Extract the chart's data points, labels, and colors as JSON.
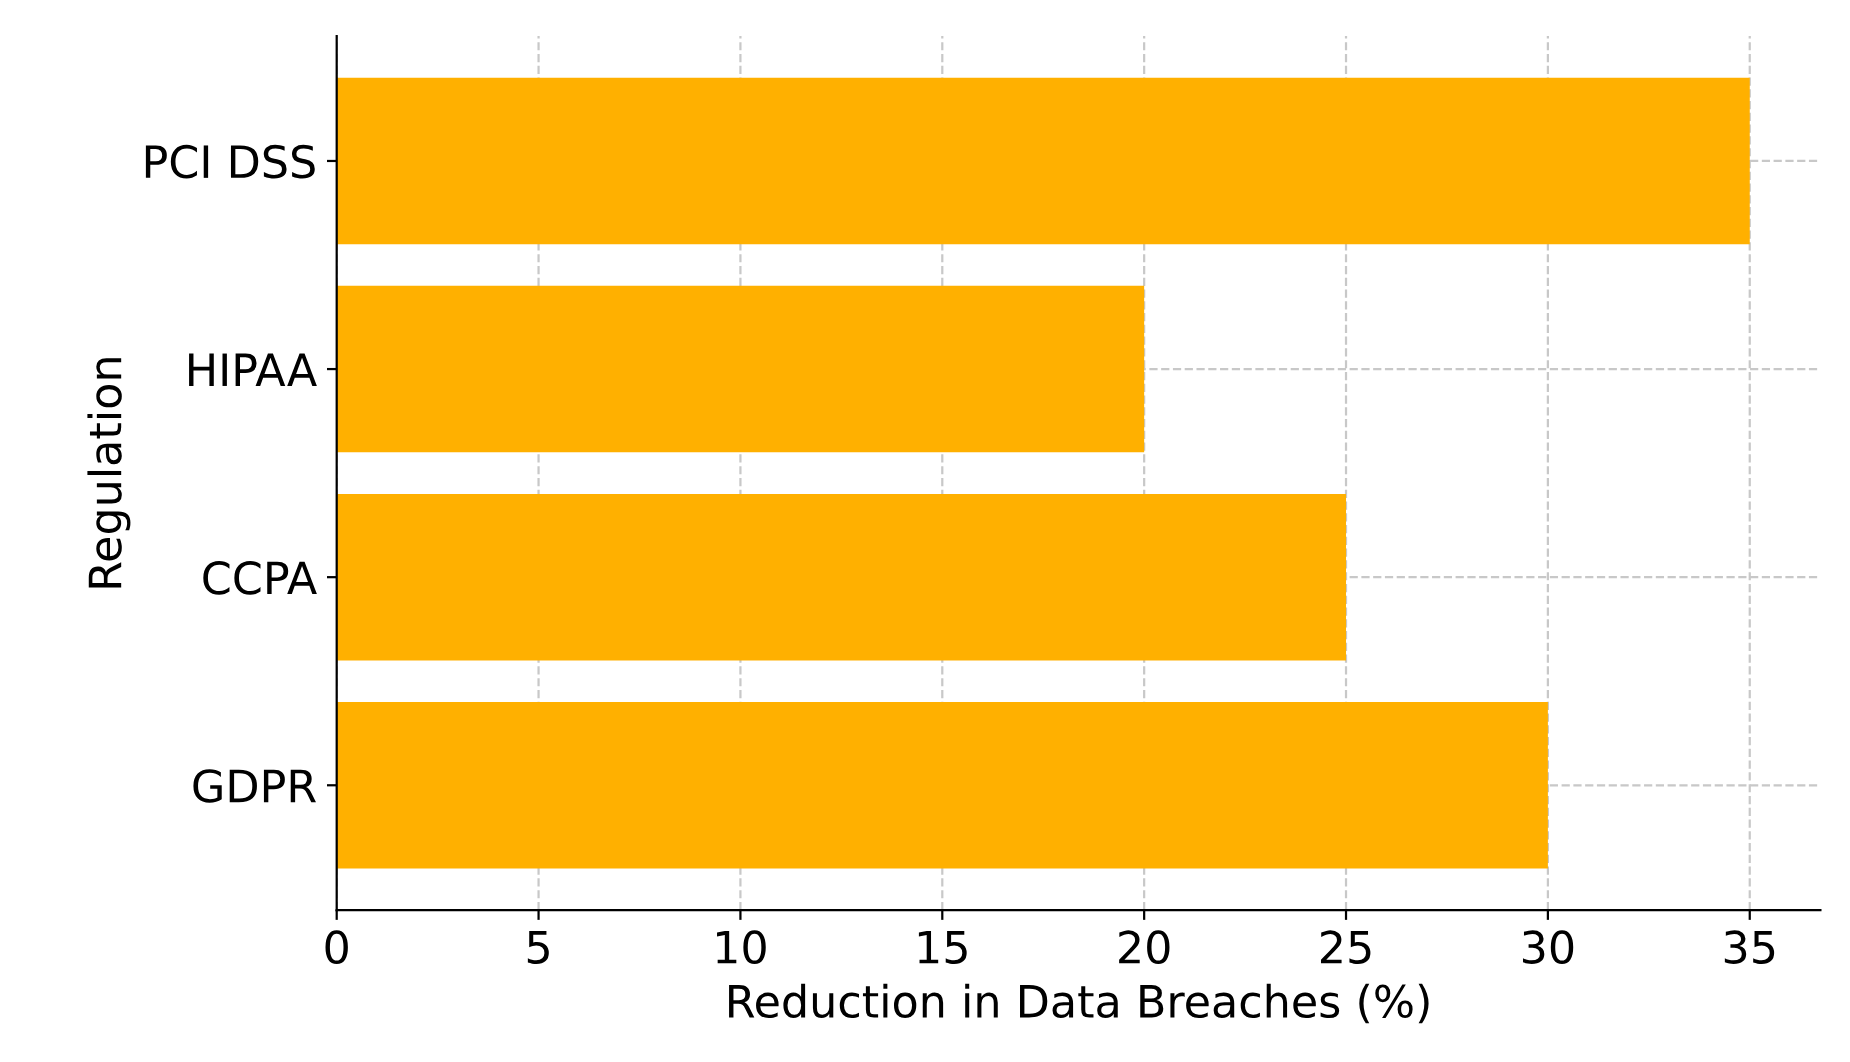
{
  "chart_data": {
    "type": "bar",
    "orientation": "horizontal",
    "xlabel": "Reduction in Data Breaches (%)",
    "ylabel": "Regulation",
    "categories": [
      "PCI DSS",
      "HIPAA",
      "CCPA",
      "GDPR"
    ],
    "values": [
      35,
      20,
      25,
      30
    ],
    "color": "#ffb000",
    "xlim": [
      0,
      36.75
    ],
    "xticks": [
      0,
      5,
      10,
      15,
      20,
      25,
      30,
      35
    ],
    "grid": true,
    "line_style": "dashed"
  }
}
